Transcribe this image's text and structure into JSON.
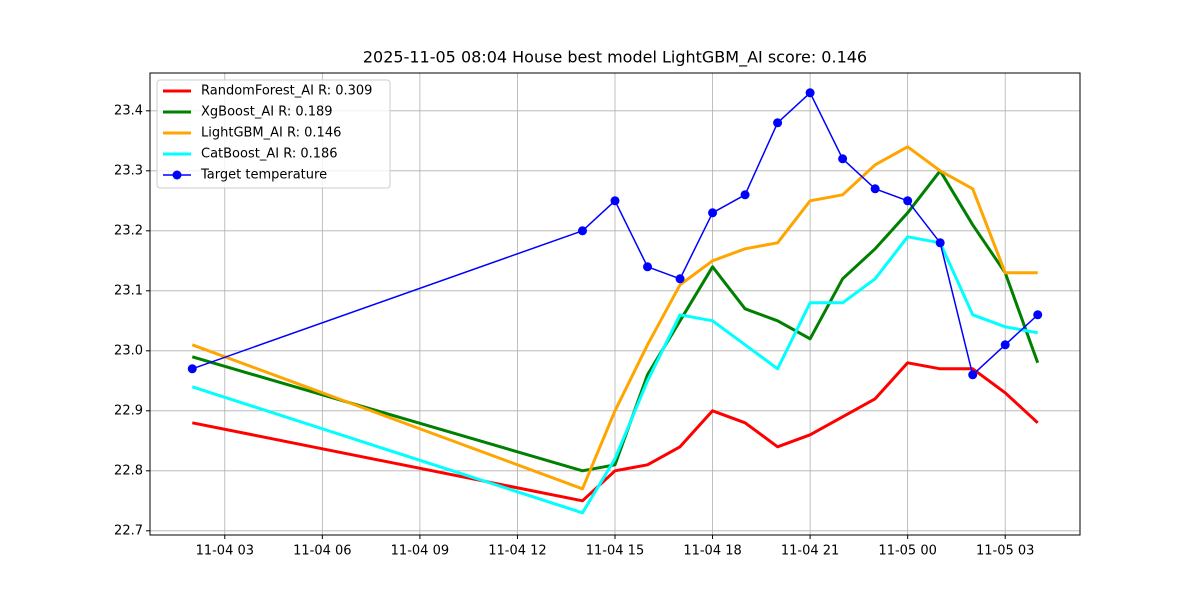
{
  "chart_data": {
    "type": "line",
    "title": "2025-11-05 08:04 House best model LightGBM_AI score: 0.146",
    "x": [
      "11-04 02",
      "11-04 14",
      "11-04 15",
      "11-04 16",
      "11-04 17",
      "11-04 18",
      "11-04 19",
      "11-04 20",
      "11-04 21",
      "11-04 22",
      "11-04 23",
      "11-05 00",
      "11-05 01",
      "11-05 02",
      "11-05 03",
      "11-05 04"
    ],
    "xlim": [
      "11-04 00:42",
      "11-05 05:18"
    ],
    "xticks": [
      "11-04 03",
      "11-04 06",
      "11-04 09",
      "11-04 12",
      "11-04 15",
      "11-04 18",
      "11-04 21",
      "11-05 00",
      "11-05 03"
    ],
    "ylim": [
      22.693,
      23.463
    ],
    "yticks": [
      {
        "value": 22.7,
        "label": "22.7"
      },
      {
        "value": 22.8,
        "label": "22.8"
      },
      {
        "value": 22.9,
        "label": "22.9"
      },
      {
        "value": 23.0,
        "label": "23.0"
      },
      {
        "value": 23.1,
        "label": "23.1"
      },
      {
        "value": 23.2,
        "label": "23.2"
      },
      {
        "value": 23.3,
        "label": "23.3"
      },
      {
        "value": 23.4,
        "label": "23.4"
      }
    ],
    "grid": true,
    "legend": "upper left",
    "series": [
      {
        "name": "RandomForest_AI R: 0.309",
        "color": "#ff0000",
        "linewidth": 3,
        "values": [
          22.88,
          22.75,
          22.8,
          22.81,
          22.84,
          22.9,
          22.88,
          22.84,
          22.86,
          22.89,
          22.92,
          22.98,
          22.97,
          22.97,
          22.93,
          22.88
        ]
      },
      {
        "name": "XgBoost_AI R: 0.189",
        "color": "#008000",
        "linewidth": 3,
        "values": [
          22.99,
          22.8,
          22.81,
          22.96,
          23.05,
          23.14,
          23.07,
          23.05,
          23.02,
          23.12,
          23.17,
          23.23,
          23.3,
          23.21,
          23.13,
          22.98
        ]
      },
      {
        "name": "LightGBM_AI R: 0.146",
        "color": "#ffa500",
        "linewidth": 3,
        "values": [
          23.01,
          22.77,
          22.9,
          23.01,
          23.11,
          23.15,
          23.17,
          23.18,
          23.25,
          23.26,
          23.31,
          23.34,
          23.3,
          23.27,
          23.13,
          23.13
        ]
      },
      {
        "name": "CatBoost_AI R: 0.186",
        "color": "#00ffff",
        "linewidth": 3,
        "values": [
          22.94,
          22.73,
          22.82,
          22.95,
          23.06,
          23.05,
          23.01,
          22.97,
          23.08,
          23.08,
          23.12,
          23.19,
          23.18,
          23.06,
          23.04,
          23.03
        ]
      },
      {
        "name": "Target temperature",
        "color": "#0000ff",
        "linewidth": 1.5,
        "marker": "o",
        "values": [
          22.97,
          23.2,
          23.25,
          23.14,
          23.12,
          23.23,
          23.26,
          23.38,
          23.43,
          23.32,
          23.27,
          23.25,
          23.18,
          22.96,
          23.01,
          23.06
        ]
      }
    ]
  }
}
